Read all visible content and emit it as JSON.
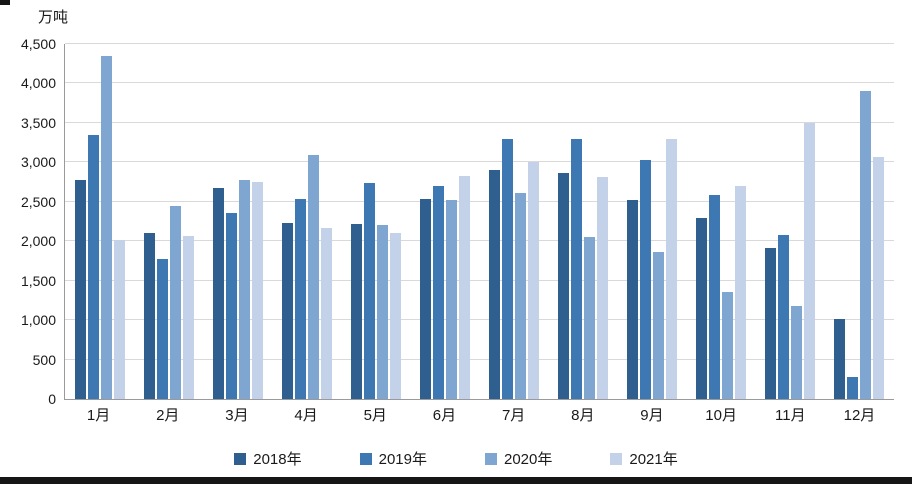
{
  "chart_data": {
    "type": "bar",
    "title": "",
    "unit_label": "万吨",
    "ylabel": "万吨",
    "xlabel": "",
    "ylim": [
      0,
      4500
    ],
    "ytick_step": 500,
    "ytick_labels": [
      "0",
      "500",
      "1,000",
      "1,500",
      "2,000",
      "2,500",
      "3,000",
      "3,500",
      "4,000",
      "4,500"
    ],
    "grid": true,
    "legend_position": "bottom",
    "categories": [
      "1月",
      "2月",
      "3月",
      "4月",
      "5月",
      "6月",
      "7月",
      "8月",
      "9月",
      "10月",
      "11月",
      "12月"
    ],
    "series": [
      {
        "name": "2018年",
        "color": "#2e5f8e",
        "values": [
          2780,
          2100,
          2670,
          2230,
          2220,
          2540,
          2900,
          2870,
          2520,
          2300,
          1920,
          1020
        ]
      },
      {
        "name": "2019年",
        "color": "#3e78b2",
        "values": [
          3350,
          1780,
          2360,
          2540,
          2740,
          2700,
          3300,
          3290,
          3030,
          2580,
          2080,
          280
        ]
      },
      {
        "name": "2020年",
        "color": "#7fa6d1",
        "values": [
          4350,
          2450,
          2780,
          3090,
          2200,
          2520,
          2610,
          2060,
          1860,
          1360,
          1180,
          3900
        ]
      },
      {
        "name": "2021年",
        "color": "#c3d2e8",
        "values": [
          2010,
          2070,
          2750,
          2170,
          2100,
          2830,
          3000,
          2810,
          3290,
          2700,
          3500,
          3070
        ]
      }
    ]
  }
}
